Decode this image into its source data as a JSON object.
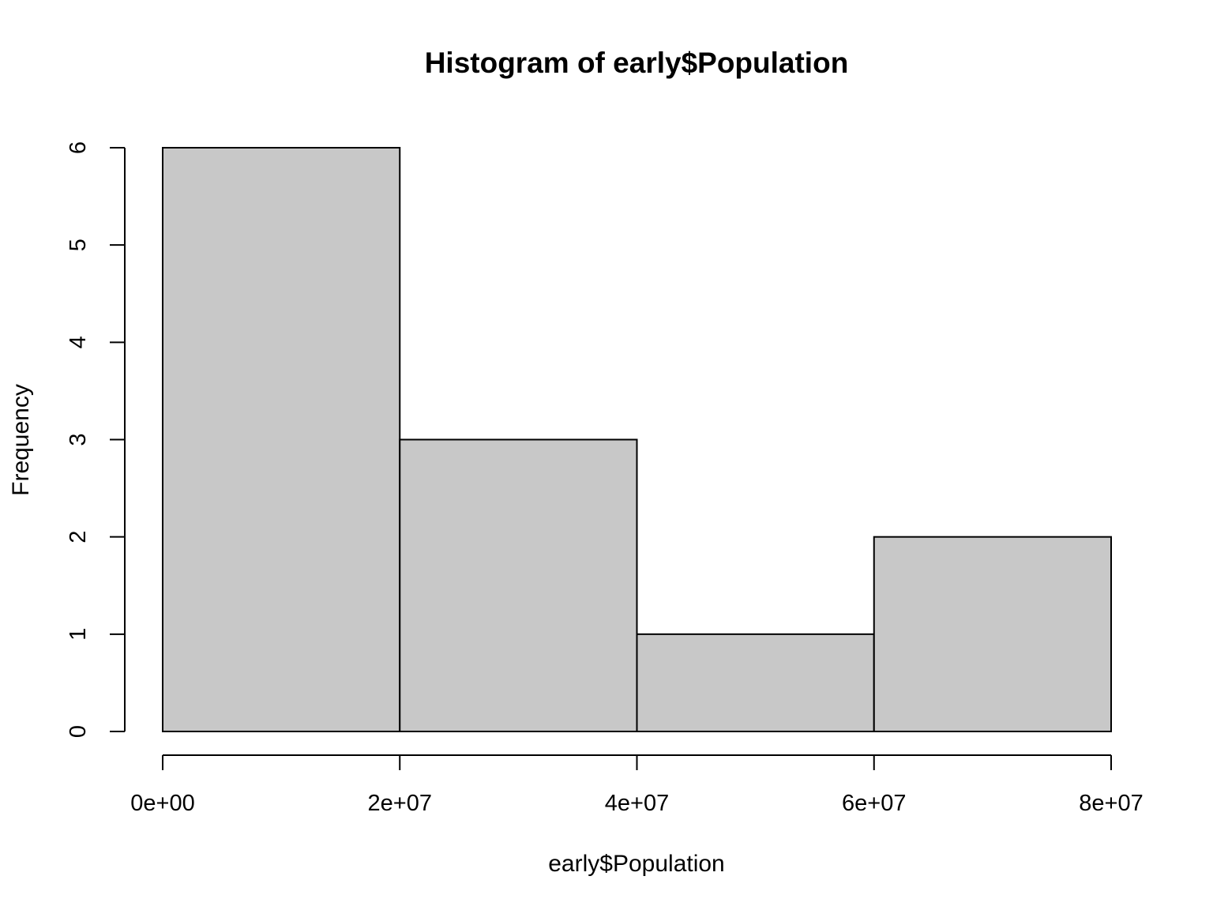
{
  "chart_data": {
    "type": "bar",
    "subtype": "histogram",
    "title": "Histogram of early$Population",
    "xlabel": "early$Population",
    "ylabel": "Frequency",
    "bins": [
      {
        "start": 0,
        "end": 20000000,
        "count": 6
      },
      {
        "start": 20000000,
        "end": 40000000,
        "count": 3
      },
      {
        "start": 40000000,
        "end": 60000000,
        "count": 1
      },
      {
        "start": 60000000,
        "end": 80000000,
        "count": 2
      }
    ],
    "xlim": [
      0,
      80000000
    ],
    "ylim": [
      0,
      6
    ],
    "x_ticks": [
      {
        "value": 0,
        "label": "0e+00"
      },
      {
        "value": 20000000,
        "label": "2e+07"
      },
      {
        "value": 40000000,
        "label": "4e+07"
      },
      {
        "value": 60000000,
        "label": "6e+07"
      },
      {
        "value": 80000000,
        "label": "8e+07"
      }
    ],
    "y_ticks": [
      {
        "value": 0,
        "label": "0"
      },
      {
        "value": 1,
        "label": "1"
      },
      {
        "value": 2,
        "label": "2"
      },
      {
        "value": 3,
        "label": "3"
      },
      {
        "value": 4,
        "label": "4"
      },
      {
        "value": 5,
        "label": "5"
      },
      {
        "value": 6,
        "label": "6"
      }
    ],
    "bar_color": "#c8c8c8",
    "bar_edge_color": "#000000",
    "grid": false,
    "legend": "none"
  }
}
